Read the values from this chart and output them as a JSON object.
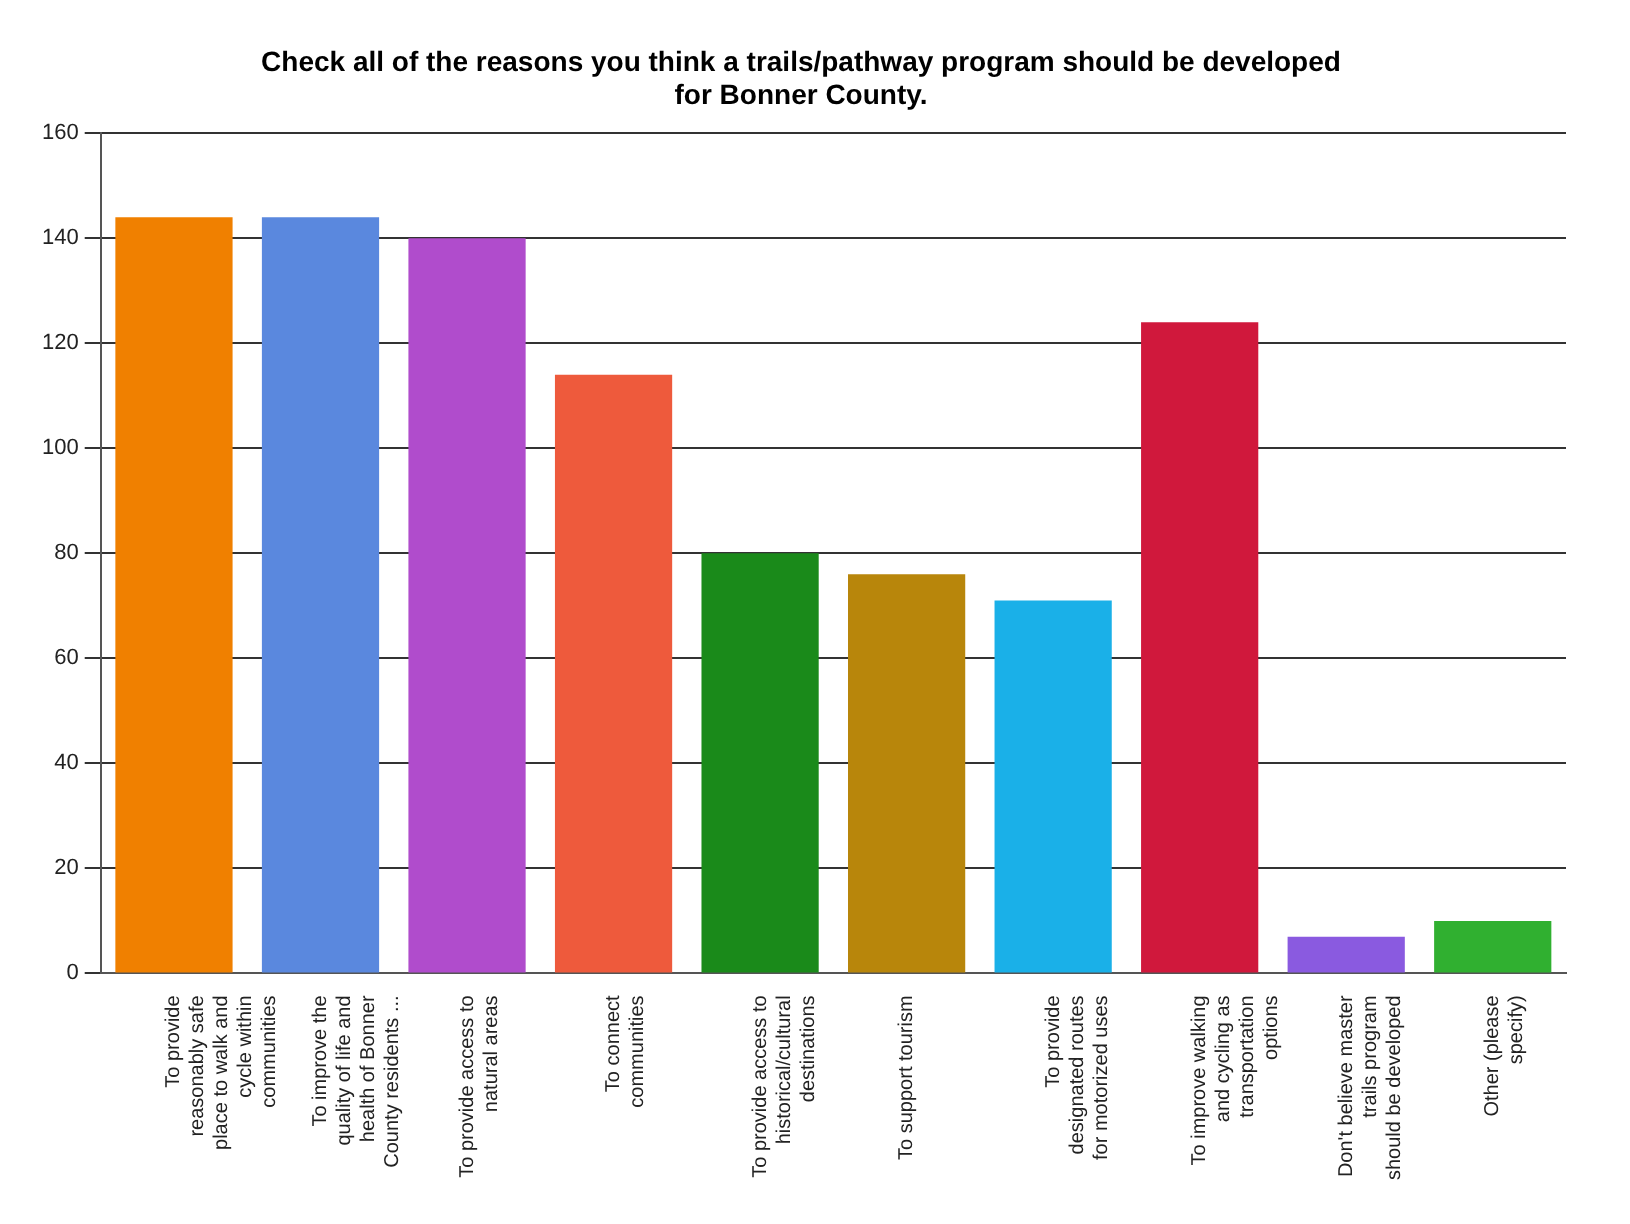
{
  "chart_data": {
    "type": "bar",
    "title": "Check all of the reasons you think a trails/pathway program should be developed for Bonner County.",
    "categories": [
      "To provide reasonably safe place to walk and cycle within communities",
      "To improve the quality of life and health of Bonner County residents ...",
      "To provide access to natural areas",
      "To connect communities",
      "To provide access to historical/cultural destinations",
      "To support tourism",
      "To provide designated routes for motorized uses",
      "To improve walking and cycling as transportation options",
      "Don't believe master trails program should be developed",
      "Other (please specify)"
    ],
    "values": [
      144,
      144,
      140,
      114,
      80,
      76,
      71,
      124,
      7,
      10
    ],
    "colors": [
      "#f08000",
      "#5a88de",
      "#b04ccc",
      "#ee5a3c",
      "#1a8a1a",
      "#b8860b",
      "#1ab0e8",
      "#d0183c",
      "#8a5ae0",
      "#30b030"
    ],
    "ylim": [
      0,
      160
    ],
    "yticks": [
      0,
      20,
      40,
      60,
      80,
      100,
      120,
      140,
      160
    ],
    "grid": "y",
    "legend": false
  }
}
